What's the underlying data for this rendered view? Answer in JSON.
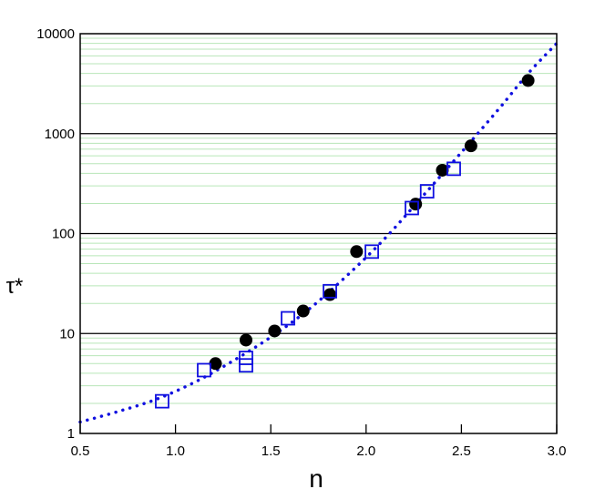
{
  "chart_data": {
    "type": "scatter",
    "title": "",
    "xlabel": "n",
    "ylabel": "τ*",
    "xlim": [
      0.5,
      3.0
    ],
    "ylim": [
      1,
      10000
    ],
    "yscale": "log",
    "x_ticks": [
      "0.5",
      "1.0",
      "1.5",
      "2.0",
      "2.5",
      "3.0"
    ],
    "y_ticks": [
      "1",
      "10",
      "100",
      "1000",
      "10000"
    ],
    "grid": {
      "major": true,
      "minor": true,
      "major_color": "#000000",
      "minor_color": "#b8e6b8"
    },
    "legend": "none",
    "series": [
      {
        "marker": "filled-circle",
        "color": "#000000",
        "points": [
          {
            "x": 1.21,
            "y": 5.0
          },
          {
            "x": 1.37,
            "y": 8.6
          },
          {
            "x": 1.52,
            "y": 10.6
          },
          {
            "x": 1.67,
            "y": 16.8
          },
          {
            "x": 1.81,
            "y": 24.5
          },
          {
            "x": 1.95,
            "y": 66
          },
          {
            "x": 2.26,
            "y": 197
          },
          {
            "x": 2.4,
            "y": 430
          },
          {
            "x": 2.55,
            "y": 755
          },
          {
            "x": 2.85,
            "y": 3400
          }
        ]
      },
      {
        "marker": "open-square",
        "color": "#1010e0",
        "points": [
          {
            "x": 0.93,
            "y": 2.1
          },
          {
            "x": 1.15,
            "y": 4.3
          },
          {
            "x": 1.37,
            "y": 4.8
          },
          {
            "x": 1.37,
            "y": 5.7
          },
          {
            "x": 1.59,
            "y": 14.2
          },
          {
            "x": 1.81,
            "y": 26.5
          },
          {
            "x": 2.03,
            "y": 66
          },
          {
            "x": 2.24,
            "y": 180
          },
          {
            "x": 2.32,
            "y": 265
          },
          {
            "x": 2.46,
            "y": 445
          }
        ]
      },
      {
        "marker": "dotted-line",
        "color": "#1010e0",
        "points": [
          {
            "x": 0.5,
            "y": 1.3
          },
          {
            "x": 0.7,
            "y": 1.66
          },
          {
            "x": 0.9,
            "y": 2.2
          },
          {
            "x": 1.1,
            "y": 3.25
          },
          {
            "x": 1.3,
            "y": 5.3
          },
          {
            "x": 1.5,
            "y": 9.2
          },
          {
            "x": 1.7,
            "y": 17.5
          },
          {
            "x": 1.9,
            "y": 38
          },
          {
            "x": 2.1,
            "y": 90
          },
          {
            "x": 2.3,
            "y": 240
          },
          {
            "x": 2.5,
            "y": 650
          },
          {
            "x": 2.7,
            "y": 1800
          },
          {
            "x": 2.85,
            "y": 4000
          },
          {
            "x": 3.0,
            "y": 8000
          }
        ]
      }
    ]
  }
}
